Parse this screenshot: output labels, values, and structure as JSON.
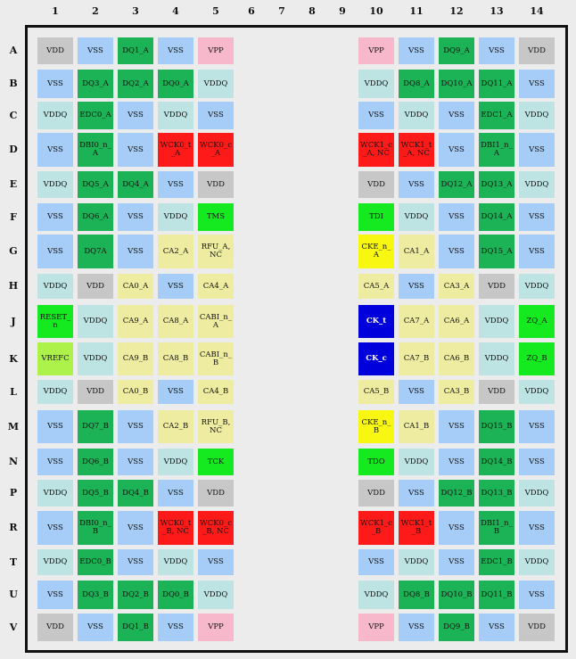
{
  "columns": [
    "1",
    "2",
    "3",
    "4",
    "5",
    "6",
    "7",
    "8",
    "9",
    "10",
    "11",
    "12",
    "13",
    "14"
  ],
  "rows": [
    "A",
    "B",
    "C",
    "D",
    "E",
    "F",
    "G",
    "H",
    "J",
    "K",
    "L",
    "M",
    "N",
    "P",
    "R",
    "T",
    "U",
    "V"
  ],
  "colors": {
    "VSS": "#a6cdf7",
    "VDD": "#c7c7c7",
    "VDDQ": "#bde3e3",
    "VPP": "#f8b8cc",
    "DQ": "#1cb356",
    "CA": "#eeeca0",
    "WCK": "#ff1a1a",
    "GREEN": "#14ea1f",
    "YELLOW": "#f7f712",
    "CK": "#0000dd",
    "VREFC": "#adf24a"
  },
  "pins": [
    [
      "VDD",
      "VSS",
      "DQ1_A",
      "VSS",
      "VPP",
      "",
      "",
      "",
      "",
      "VPP",
      "VSS",
      "DQ9_A",
      "VSS",
      "VDD"
    ],
    [
      "VSS",
      "DQ3_A",
      "DQ2_A",
      "DQ0_A",
      "VDDQ",
      "",
      "",
      "",
      "",
      "VDDQ",
      "DQ8_A",
      "DQ10_A",
      "DQ11_A",
      "VSS"
    ],
    [
      "VDDQ",
      "EDC0_A",
      "VSS",
      "VDDQ",
      "VSS",
      "",
      "",
      "",
      "",
      "VSS",
      "VDDQ",
      "VSS",
      "EDC1_A",
      "VDDQ"
    ],
    [
      "VSS",
      "DBI0_n_A",
      "VSS",
      "WCK0_t_A",
      "WCK0_c_A",
      "",
      "",
      "",
      "",
      "WCK1_c_A, NC",
      "WCK1_t_A, NC",
      "VSS",
      "DBI1_n_A",
      "VSS"
    ],
    [
      "VDDQ",
      "DQ5_A",
      "DQ4_A",
      "VSS",
      "VDD",
      "",
      "",
      "",
      "",
      "VDD",
      "VSS",
      "DQ12_A",
      "DQ13_A",
      "VDDQ"
    ],
    [
      "VSS",
      "DQ6_A",
      "VSS",
      "VDDQ",
      "TMS",
      "",
      "",
      "",
      "",
      "TDI",
      "VDDQ",
      "VSS",
      "DQ14_A",
      "VSS"
    ],
    [
      "VSS",
      "DQ7A",
      "VSS",
      "CA2_A",
      "RFU_A, NC",
      "",
      "",
      "",
      "",
      "CKE_n_A",
      "CA1_A",
      "VSS",
      "DQ15_A",
      "VSS"
    ],
    [
      "VDDQ",
      "VDD",
      "CA0_A",
      "VSS",
      "CA4_A",
      "",
      "",
      "",
      "",
      "CA5_A",
      "VSS",
      "CA3_A",
      "VDD",
      "VDDQ"
    ],
    [
      "RESET_n",
      "VDDQ",
      "CA9_A",
      "CA8_A",
      "CABI_n_A",
      "",
      "",
      "",
      "",
      "CK_t",
      "CA7_A",
      "CA6_A",
      "VDDQ",
      "ZQ_A"
    ],
    [
      "VREFC",
      "VDDQ",
      "CA9_B",
      "CA8_B",
      "CABI_n_B",
      "",
      "",
      "",
      "",
      "CK_c",
      "CA7_B",
      "CA6_B",
      "VDDQ",
      "ZQ_B"
    ],
    [
      "VDDQ",
      "VDD",
      "CA0_B",
      "VSS",
      "CA4_B",
      "",
      "",
      "",
      "",
      "CA5_B",
      "VSS",
      "CA3_B",
      "VDD",
      "VDDQ"
    ],
    [
      "VSS",
      "DQ7_B",
      "VSS",
      "CA2_B",
      "RFU_B, NC",
      "",
      "",
      "",
      "",
      "CKE_n_B",
      "CA1_B",
      "VSS",
      "DQ15_B",
      "VSS"
    ],
    [
      "VSS",
      "DQ6_B",
      "VSS",
      "VDDQ",
      "TCK",
      "",
      "",
      "",
      "",
      "TDO",
      "VDDQ",
      "VSS",
      "DQ14_B",
      "VSS"
    ],
    [
      "VDDQ",
      "DQ5_B",
      "DQ4_B",
      "VSS",
      "VDD",
      "",
      "",
      "",
      "",
      "VDD",
      "VSS",
      "DQ12_B",
      "DQ13_B",
      "VDDQ"
    ],
    [
      "VSS",
      "DBI0_n_B",
      "VSS",
      "WCK0_t_B, NC",
      "WCK0_c_B, NC",
      "",
      "",
      "",
      "",
      "WCK1_c_B",
      "WCK1_t_B",
      "VSS",
      "DBI1_n_B",
      "VSS"
    ],
    [
      "VDDQ",
      "EDC0_B",
      "VSS",
      "VDDQ",
      "VSS",
      "",
      "",
      "",
      "",
      "VSS",
      "VDDQ",
      "VSS",
      "EDC1_B",
      "VDDQ"
    ],
    [
      "VSS",
      "DQ3_B",
      "DQ2_B",
      "DQ0_B",
      "VDDQ",
      "",
      "",
      "",
      "",
      "VDDQ",
      "DQ8_B",
      "DQ10_B",
      "DQ11_B",
      "VSS"
    ],
    [
      "VDD",
      "VSS",
      "DQ1_B",
      "VSS",
      "VPP",
      "",
      "",
      "",
      "",
      "VPP",
      "VSS",
      "DQ9_B",
      "VSS",
      "VDD"
    ]
  ]
}
